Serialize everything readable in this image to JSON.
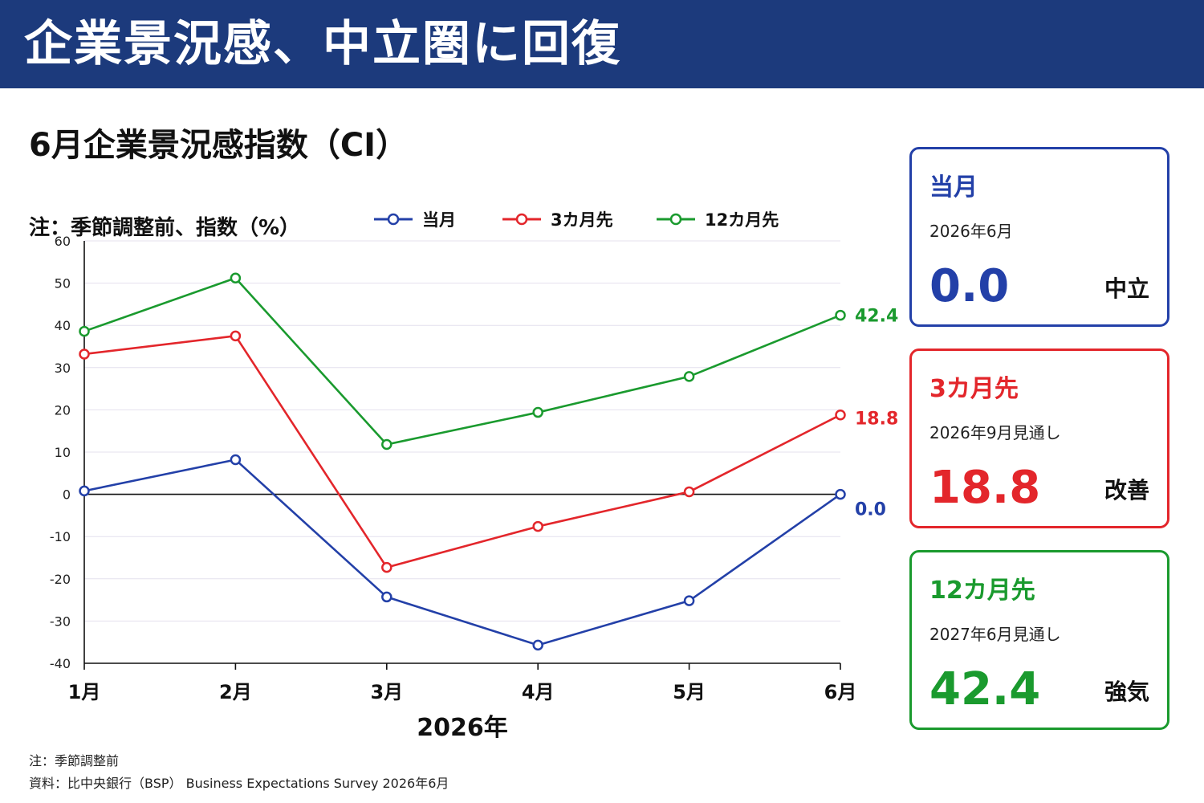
{
  "header": {
    "title": "企業景況感、中立圏に回復"
  },
  "chart_title": "6月企業景況感指数（CI）",
  "colors": {
    "header_bg": "#1c3a7c",
    "current": "#2340a8",
    "three_month": "#e3262b",
    "twelve_month": "#1a9a2e"
  },
  "chart_data": {
    "type": "line",
    "title": "6月企業景況感指数（CI）",
    "ylabel": "注：季節調整前、指数（%）",
    "xlabel": "2026年",
    "categories": [
      "1月",
      "2月",
      "3月",
      "4月",
      "5月",
      "6月"
    ],
    "ylim": [
      -40,
      60
    ],
    "yticks": [
      60,
      50,
      40,
      30,
      20,
      10,
      0,
      -10,
      -20,
      -30,
      -40
    ],
    "grid": true,
    "legend_position": "top",
    "series": [
      {
        "name": "当月",
        "color": "#2340a8",
        "values": [
          0.8,
          8.2,
          -24.3,
          -35.7,
          -25.2,
          0.0
        ],
        "end_label": "0.0"
      },
      {
        "name": "3カ月先",
        "color": "#e3262b",
        "values": [
          33.2,
          37.5,
          -17.3,
          -7.6,
          0.6,
          18.8
        ],
        "end_label": "18.8"
      },
      {
        "name": "12カ月先",
        "color": "#1a9a2e",
        "values": [
          38.6,
          51.2,
          11.8,
          19.4,
          27.9,
          42.4
        ],
        "end_label": "42.4"
      }
    ]
  },
  "cards": [
    {
      "label": "当月",
      "period": "2026年6月",
      "value": "0.0",
      "status": "中立",
      "color": "#2340a8"
    },
    {
      "label": "3カ月先",
      "period": "2026年9月見通し",
      "value": "18.8",
      "status": "改善",
      "color": "#e3262b"
    },
    {
      "label": "12カ月先",
      "period": "2027年6月見通し",
      "value": "42.4",
      "status": "強気",
      "color": "#1a9a2e"
    }
  ],
  "footnotes": {
    "note": "注：季節調整前",
    "source": "資料：比中央銀行（BSP） Business Expectations Survey 2026年6月"
  }
}
